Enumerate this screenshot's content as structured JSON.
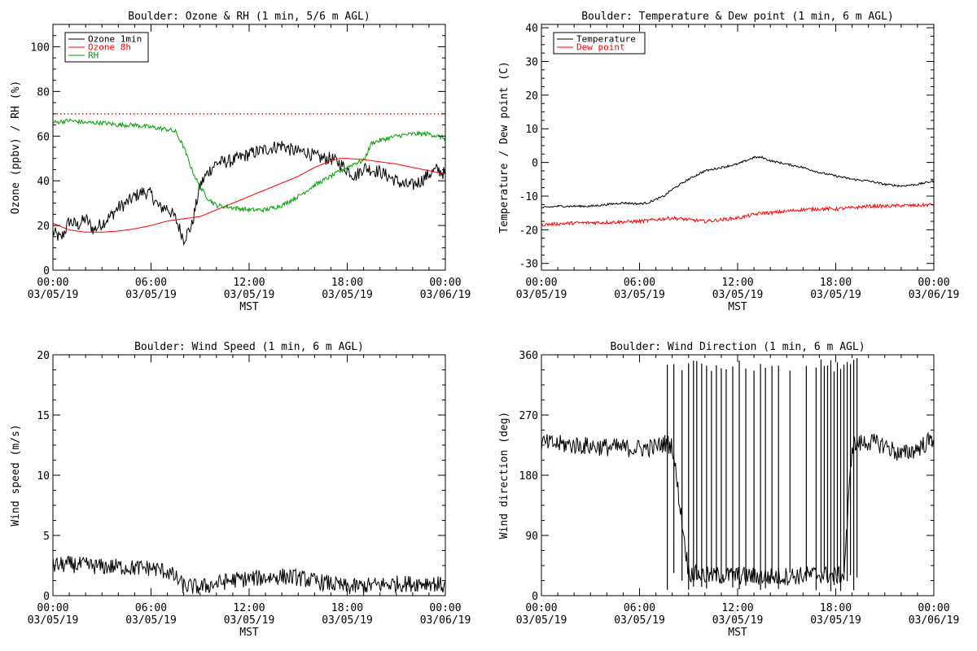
{
  "chart_data": [
    {
      "type": "line",
      "title": "Boulder: Ozone & RH (1 min, 5/6 m AGL)",
      "xlabel": "MST",
      "ylabel": "Ozone (ppbv) / RH (%)",
      "ylim": [
        0,
        110
      ],
      "yticks": [
        0,
        20,
        40,
        60,
        80,
        100
      ],
      "xlim": [
        0,
        24
      ],
      "xtick_hours": [
        0,
        6,
        12,
        18,
        24
      ],
      "xtick_times": [
        "00:00",
        "06:00",
        "12:00",
        "18:00",
        "00:00"
      ],
      "xtick_dates": [
        "03/05/19",
        "03/05/19",
        "03/05/19",
        "03/05/19",
        "03/06/19"
      ],
      "legend_position": "top-left",
      "reference_line": {
        "y": 70,
        "style": "dotted",
        "color": "#ff0000"
      },
      "series": [
        {
          "name": "Ozone 1min",
          "color": "#000000",
          "noise": 3,
          "x": [
            0,
            0.5,
            1,
            1.5,
            2,
            2.5,
            3,
            3.5,
            4,
            4.5,
            5,
            5.5,
            6,
            6.5,
            7,
            7.5,
            8,
            8.5,
            9,
            9.5,
            10,
            11,
            12,
            13,
            14,
            14.5,
            15,
            15.5,
            16,
            16.5,
            17,
            17.5,
            18,
            18.5,
            19,
            19.5,
            20,
            20.5,
            21,
            21.5,
            22,
            22.5,
            23,
            23.5,
            24
          ],
          "y": [
            17,
            14,
            22,
            20,
            23,
            18,
            21,
            24,
            28,
            30,
            33,
            35,
            34,
            28,
            28,
            23,
            14,
            20,
            38,
            44,
            48,
            49,
            52,
            54,
            56,
            54,
            53,
            53,
            51,
            50,
            50,
            48,
            45,
            42,
            46,
            45,
            44,
            42,
            40,
            38,
            38,
            40,
            43,
            45,
            43
          ]
        },
        {
          "name": "Ozone 8h",
          "color": "#ff0000",
          "noise": 0,
          "x": [
            0,
            1,
            2,
            3,
            4,
            5,
            6,
            7,
            8,
            9,
            10,
            11,
            12,
            13,
            14,
            15,
            16,
            17,
            17.5,
            18,
            19,
            20,
            21,
            22,
            23,
            24
          ],
          "y": [
            21,
            18,
            17,
            17,
            17.5,
            18.5,
            20,
            22,
            23,
            24,
            27,
            30,
            33,
            36,
            39,
            42,
            46,
            49,
            50,
            50,
            49.5,
            48.5,
            47.5,
            46,
            44.5,
            43
          ]
        },
        {
          "name": "RH",
          "color": "#00a000",
          "noise": 1,
          "x": [
            0,
            1,
            2,
            3,
            4,
            5,
            6,
            7,
            7.5,
            8,
            8.5,
            9,
            9.5,
            10,
            11,
            12,
            13,
            14,
            15,
            16,
            17,
            18,
            18.5,
            19,
            19.5,
            20,
            21,
            22,
            23,
            24
          ],
          "y": [
            66,
            67,
            66,
            66,
            65,
            65,
            64,
            63,
            62,
            55,
            45,
            37,
            32,
            29,
            28,
            27,
            27,
            29,
            33,
            38,
            42,
            46,
            48,
            49,
            57,
            58,
            60,
            61,
            61,
            59
          ]
        }
      ]
    },
    {
      "type": "line",
      "title": "Boulder: Temperature & Dew point (1 min, 6 m AGL)",
      "xlabel": "MST",
      "ylabel": "Temperature / Dew point (C)",
      "ylim": [
        -32,
        41
      ],
      "yticks": [
        -30,
        -20,
        -10,
        0,
        10,
        20,
        30,
        40
      ],
      "xlim": [
        0,
        24
      ],
      "xtick_hours": [
        0,
        6,
        12,
        18,
        24
      ],
      "xtick_times": [
        "00:00",
        "06:00",
        "12:00",
        "18:00",
        "00:00"
      ],
      "xtick_dates": [
        "03/05/19",
        "03/05/19",
        "03/05/19",
        "03/05/19",
        "03/06/19"
      ],
      "legend_position": "top-left",
      "series": [
        {
          "name": "Temperature",
          "color": "#000000",
          "noise": 0.3,
          "x": [
            0,
            1,
            2,
            3,
            4,
            5,
            6,
            6.5,
            7,
            7.5,
            8,
            9,
            10,
            11,
            12,
            12.5,
            13,
            13.5,
            14,
            15,
            16,
            17,
            18,
            19,
            20,
            21,
            22,
            23,
            24
          ],
          "y": [
            -13.5,
            -13,
            -13,
            -13,
            -12.5,
            -12,
            -12.3,
            -12,
            -11,
            -10,
            -8,
            -5,
            -2.5,
            -1.5,
            -0.5,
            0.5,
            1.5,
            1.5,
            0.5,
            -0.5,
            -1.5,
            -3,
            -4,
            -5,
            -5.5,
            -6.5,
            -7,
            -6.5,
            -5.5
          ]
        },
        {
          "name": "Dew point",
          "color": "#ff0000",
          "noise": 0.5,
          "x": [
            0,
            2,
            4,
            6,
            8,
            9,
            10,
            11,
            12,
            13,
            13.5,
            14,
            15,
            16,
            17,
            18,
            19,
            20,
            21,
            22,
            23,
            24
          ],
          "y": [
            -18.5,
            -18,
            -17.8,
            -17.5,
            -16.5,
            -17,
            -17.5,
            -17,
            -16.5,
            -15.5,
            -15,
            -15,
            -14.5,
            -14,
            -13.8,
            -13.8,
            -13.5,
            -13,
            -13,
            -12.8,
            -12.8,
            -12.5
          ]
        }
      ]
    },
    {
      "type": "line",
      "title": "Boulder: Wind Speed (1 min, 6 m AGL)",
      "xlabel": "MST",
      "ylabel": "Wind speed (m/s)",
      "ylim": [
        0,
        20
      ],
      "yticks": [
        0,
        5,
        10,
        15,
        20
      ],
      "xlim": [
        0,
        24
      ],
      "xtick_hours": [
        0,
        6,
        12,
        18,
        24
      ],
      "xtick_times": [
        "00:00",
        "06:00",
        "12:00",
        "18:00",
        "00:00"
      ],
      "xtick_dates": [
        "03/05/19",
        "03/05/19",
        "03/05/19",
        "03/05/19",
        "03/06/19"
      ],
      "series": [
        {
          "name": "",
          "color": "#000000",
          "noise": 0.7,
          "floor": 0,
          "x": [
            0,
            1,
            2,
            3,
            4,
            5,
            6,
            7,
            7.5,
            8,
            9,
            10,
            11,
            12,
            13,
            14,
            15,
            16,
            17,
            18,
            19,
            20,
            21,
            22,
            23,
            24
          ],
          "y": [
            2.5,
            2.6,
            2.5,
            2.4,
            2.4,
            2.3,
            2.3,
            2,
            1.5,
            0.8,
            0.7,
            1,
            1.3,
            1.4,
            1.5,
            1.6,
            1.5,
            1.2,
            1,
            0.7,
            0.8,
            0.9,
            1,
            1,
            1.1,
            0.8
          ]
        }
      ]
    },
    {
      "type": "line",
      "title": "Boulder: Wind Direction (1 min, 6 m AGL)",
      "xlabel": "MST",
      "ylabel": "Wind direction (deg)",
      "ylim": [
        0,
        360
      ],
      "yticks": [
        0,
        90,
        180,
        270,
        360
      ],
      "xlim": [
        0,
        24
      ],
      "xtick_hours": [
        0,
        6,
        12,
        18,
        24
      ],
      "xtick_times": [
        "00:00",
        "06:00",
        "12:00",
        "18:00",
        "00:00"
      ],
      "xtick_dates": [
        "03/05/19",
        "03/05/19",
        "03/05/19",
        "03/05/19",
        "03/06/19"
      ],
      "series": [
        {
          "name": "",
          "color": "#000000",
          "noise": 14,
          "floor": 0,
          "x": [
            0,
            2,
            4,
            6,
            7,
            7.5,
            8,
            9,
            10,
            12,
            14,
            16,
            17,
            18,
            18.5,
            19,
            20,
            21,
            22,
            23,
            24
          ],
          "y": [
            228,
            225,
            222,
            220,
            222,
            228,
            225,
            35,
            30,
            30,
            28,
            30,
            32,
            30,
            30,
            225,
            230,
            225,
            210,
            220,
            235
          ]
        }
      ],
      "direction_jumps": {
        "hours": [
          7.7,
          8.1,
          8.6,
          9.0,
          9.3,
          9.5,
          9.8,
          10.1,
          10.4,
          10.7,
          11.0,
          11.3,
          11.7,
          12.1,
          12.5,
          13.0,
          13.4,
          13.7,
          14.1,
          14.5,
          15.2,
          16.2,
          16.8,
          17.1,
          17.3,
          17.5,
          17.7,
          17.9,
          18.1,
          18.3,
          18.5,
          18.7,
          18.9,
          19.1,
          19.3
        ],
        "low": 5,
        "high": 355
      }
    }
  ]
}
